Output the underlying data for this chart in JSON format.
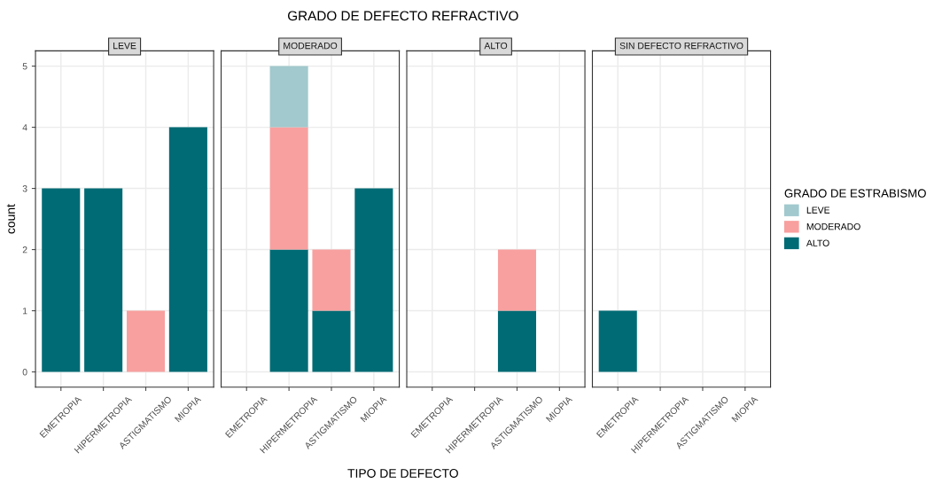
{
  "chart_data": [
    {
      "type": "bar",
      "title": "LEVE",
      "ylabel": "count",
      "stacked": true,
      "grid": true,
      "annotations": [
        "GRADO DE DEFECTO REFRACTIVO",
        "TIPO DE DEFECTO"
      ],
      "categories": [
        "EMETROPIA",
        "HIPERMETROPIA",
        "ASTIGMATISMO",
        "MIOPIA"
      ],
      "ylim": [
        -0.25,
        5.25
      ],
      "yticks": [
        0,
        1,
        2,
        3,
        4,
        5
      ],
      "series": [
        {
          "color": "#006b75",
          "values": [
            3,
            3,
            null,
            4
          ]
        },
        {
          "color": "#f8a09f",
          "values": [
            null,
            null,
            1,
            null
          ]
        }
      ]
    },
    {
      "type": "bar",
      "title": "MODERADO",
      "stacked": true,
      "grid": true,
      "tick_labels": "x",
      "categories": [
        "EMETROPIA",
        "HIPERMETROPIA",
        "ASTIGMATISMO",
        "MIOPIA"
      ],
      "ylim": [
        -0.25,
        5.25
      ],
      "yticks": [
        0,
        1,
        2,
        3,
        4,
        5
      ],
      "series": [
        {
          "color": "#006b75",
          "values": [
            null,
            2,
            1,
            3
          ]
        },
        {
          "color": "#f8a09f",
          "values": [
            null,
            2,
            1,
            null
          ]
        },
        {
          "color": "#a1c9ce",
          "values": [
            null,
            1,
            null,
            null
          ]
        }
      ]
    },
    {
      "type": "bar",
      "title": "ALTO",
      "stacked": true,
      "grid": true,
      "tick_labels": "x",
      "categories": [
        "EMETROPIA",
        "HIPERMETROPIA",
        "ASTIGMATISMO",
        "MIOPIA"
      ],
      "ylim": [
        -0.25,
        5.25
      ],
      "yticks": [
        0,
        1,
        2,
        3,
        4,
        5
      ],
      "series": [
        {
          "color": "#006b75",
          "values": [
            null,
            null,
            1,
            null
          ]
        },
        {
          "color": "#f8a09f",
          "values": [
            null,
            null,
            1,
            null
          ]
        }
      ]
    },
    {
      "type": "bar",
      "title": "SIN DEFECTO REFRACTIVO",
      "stacked": true,
      "grid": true,
      "legend": "right",
      "legend_title": "GRADO DE ESTRABISMO",
      "tick_labels": "x",
      "categories": [
        "EMETROPIA",
        "HIPERMETROPIA",
        "ASTIGMATISMO",
        "MIOPIA"
      ],
      "ylim": [
        -0.25,
        5.25
      ],
      "yticks": [
        0,
        1,
        2,
        3,
        4,
        5
      ],
      "series": [
        {
          "name": "ALTO",
          "color": "#006b75",
          "values": [
            1,
            null,
            null,
            null
          ]
        },
        {
          "name": "MODERADO",
          "color": "#f8a09f",
          "values": [
            null,
            null,
            null,
            null
          ]
        },
        {
          "name": "LEVE",
          "color": "#a1c9ce",
          "values": [
            null,
            null,
            null,
            null
          ]
        }
      ]
    }
  ]
}
